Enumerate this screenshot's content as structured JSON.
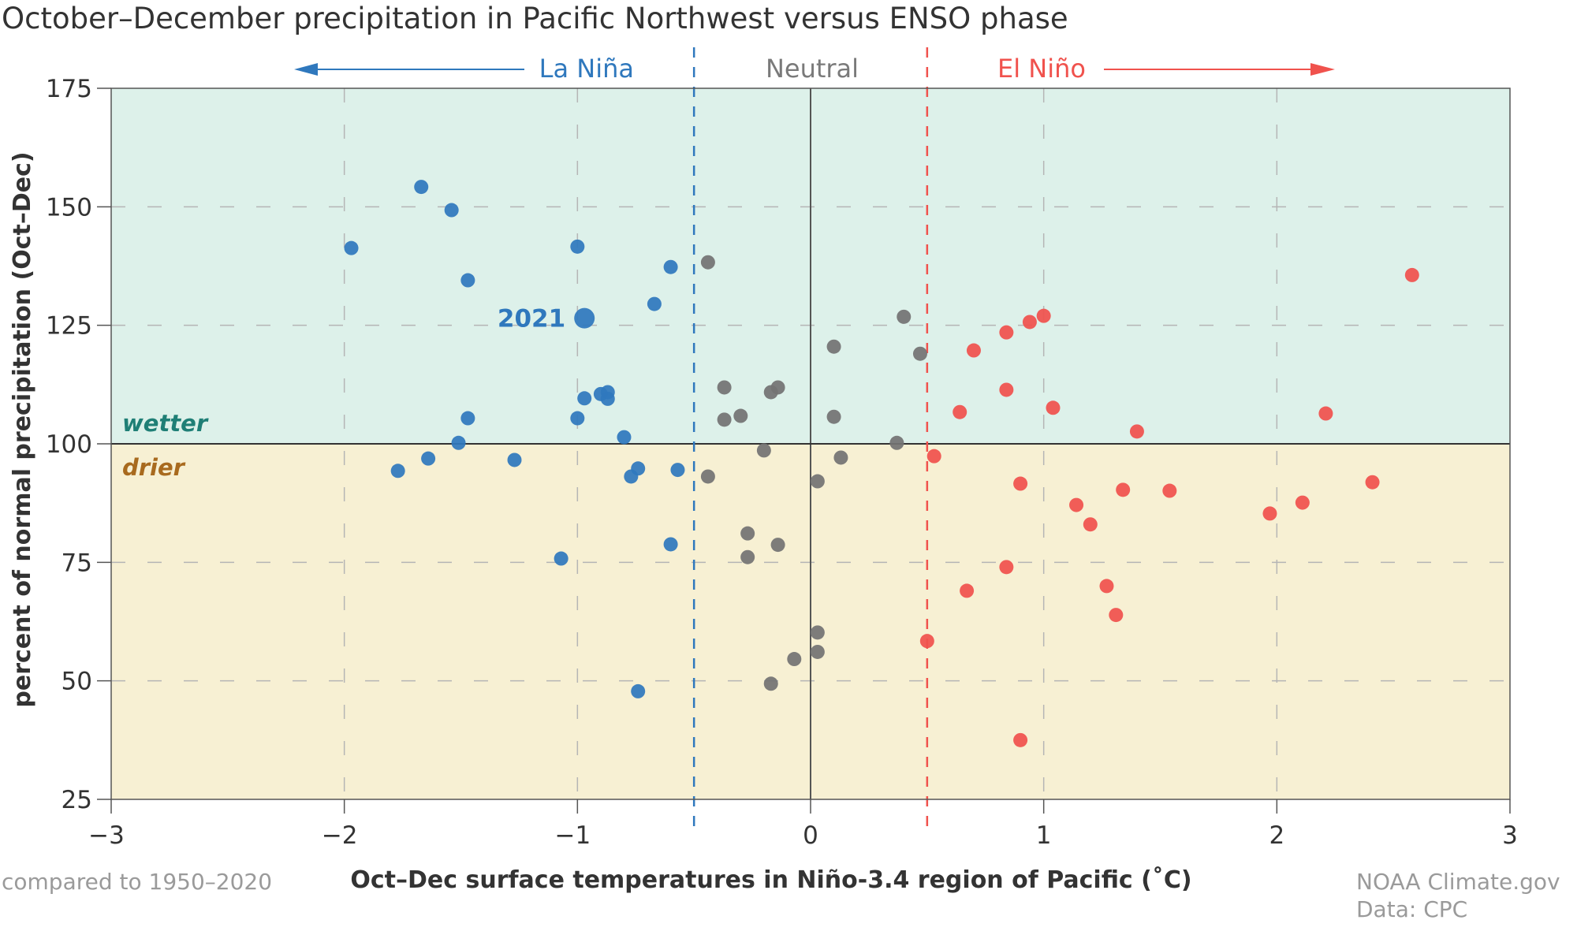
{
  "chart_data": {
    "type": "scatter",
    "title": "October–December precipitation in Pacific Northwest versus ENSO phase",
    "xlabel": "Oct–Dec surface temperatures in Niño-3.4 region of Pacific (˚C)",
    "ylabel": "percent of normal precipitation (Oct–Dec)",
    "xlim": [
      -3,
      3
    ],
    "ylim": [
      25,
      175
    ],
    "xticks": [
      -3,
      -2,
      -1,
      0,
      1,
      2,
      3
    ],
    "xtick_labels": [
      "−3",
      "−2",
      "−1",
      "0",
      "1",
      "2",
      "3"
    ],
    "yticks": [
      175,
      150,
      125,
      100,
      75,
      50,
      25
    ],
    "ytick_labels": [
      "175",
      "150",
      "125",
      "100",
      "75",
      "50",
      "25"
    ],
    "grid": true,
    "reference_lines": {
      "x": [
        -0.5,
        0.5
      ],
      "x_zero": 0,
      "y": 100
    },
    "regions": {
      "wetter": {
        "label": "wetter",
        "range": [
          100,
          175
        ],
        "fill": "#ddf1ea",
        "text_color": "#1f7f76"
      },
      "drier": {
        "label": "drier",
        "range": [
          25,
          100
        ],
        "fill": "#f7f0d3",
        "text_color": "#a86a1e"
      }
    },
    "phase_labels": {
      "la_nina": {
        "label": "La Niña",
        "color": "#2f78bd"
      },
      "neutral": {
        "label": "Neutral",
        "color": "#7a7a7a"
      },
      "el_nino": {
        "label": "El Niño",
        "color": "#f0524d"
      }
    },
    "highlight": {
      "label": "2021",
      "x": -0.97,
      "y": 126.5,
      "series": "La Niña"
    },
    "series": [
      {
        "name": "La Niña",
        "color": "#2f78bd",
        "points": [
          [
            -1.67,
            154.2
          ],
          [
            -1.54,
            149.3
          ],
          [
            -1.97,
            141.3
          ],
          [
            -1.47,
            134.5
          ],
          [
            -1.0,
            141.6
          ],
          [
            -0.6,
            137.3
          ],
          [
            -0.67,
            129.5
          ],
          [
            -0.97,
            126.5
          ],
          [
            -0.97,
            109.6
          ],
          [
            -0.9,
            110.5
          ],
          [
            -0.87,
            110.9
          ],
          [
            -0.87,
            109.5
          ],
          [
            -1.0,
            105.4
          ],
          [
            -0.8,
            101.4
          ],
          [
            -1.47,
            105.4
          ],
          [
            -1.51,
            100.2
          ],
          [
            -1.64,
            96.9
          ],
          [
            -1.77,
            94.3
          ],
          [
            -1.27,
            96.6
          ],
          [
            -0.74,
            94.8
          ],
          [
            -0.77,
            93.1
          ],
          [
            -0.57,
            94.5
          ],
          [
            -1.07,
            75.8
          ],
          [
            -0.6,
            78.8
          ],
          [
            -0.74,
            47.8
          ]
        ]
      },
      {
        "name": "Neutral",
        "color": "#737373",
        "points": [
          [
            -0.44,
            138.3
          ],
          [
            0.4,
            126.8
          ],
          [
            0.1,
            120.5
          ],
          [
            0.47,
            119.0
          ],
          [
            -0.37,
            111.9
          ],
          [
            -0.14,
            111.9
          ],
          [
            -0.17,
            110.9
          ],
          [
            -0.37,
            105.1
          ],
          [
            -0.3,
            105.9
          ],
          [
            0.1,
            105.7
          ],
          [
            0.37,
            100.2
          ],
          [
            -0.2,
            98.6
          ],
          [
            0.13,
            97.1
          ],
          [
            -0.44,
            93.1
          ],
          [
            0.03,
            92.1
          ],
          [
            -0.27,
            81.1
          ],
          [
            -0.14,
            78.7
          ],
          [
            -0.27,
            76.1
          ],
          [
            0.03,
            60.2
          ],
          [
            0.03,
            56.1
          ],
          [
            -0.07,
            54.6
          ],
          [
            -0.17,
            49.4
          ]
        ]
      },
      {
        "name": "El Niño",
        "color": "#f0524d",
        "points": [
          [
            2.58,
            135.6
          ],
          [
            1.0,
            127.0
          ],
          [
            0.94,
            125.7
          ],
          [
            0.84,
            123.5
          ],
          [
            0.7,
            119.7
          ],
          [
            0.84,
            111.4
          ],
          [
            0.64,
            106.7
          ],
          [
            1.04,
            107.6
          ],
          [
            2.21,
            106.4
          ],
          [
            1.4,
            102.6
          ],
          [
            0.53,
            97.4
          ],
          [
            0.9,
            91.6
          ],
          [
            1.34,
            90.3
          ],
          [
            1.54,
            90.1
          ],
          [
            2.41,
            91.9
          ],
          [
            1.14,
            87.1
          ],
          [
            2.11,
            87.6
          ],
          [
            1.97,
            85.3
          ],
          [
            1.2,
            83.0
          ],
          [
            0.84,
            74.0
          ],
          [
            1.27,
            70.0
          ],
          [
            0.67,
            69.0
          ],
          [
            1.31,
            63.9
          ],
          [
            0.5,
            58.4
          ],
          [
            0.9,
            37.5
          ]
        ]
      }
    ]
  },
  "footer": {
    "baseline_note": "compared to 1950–2020",
    "credit_line1": "NOAA Climate.gov",
    "credit_line2": "Data: CPC"
  }
}
